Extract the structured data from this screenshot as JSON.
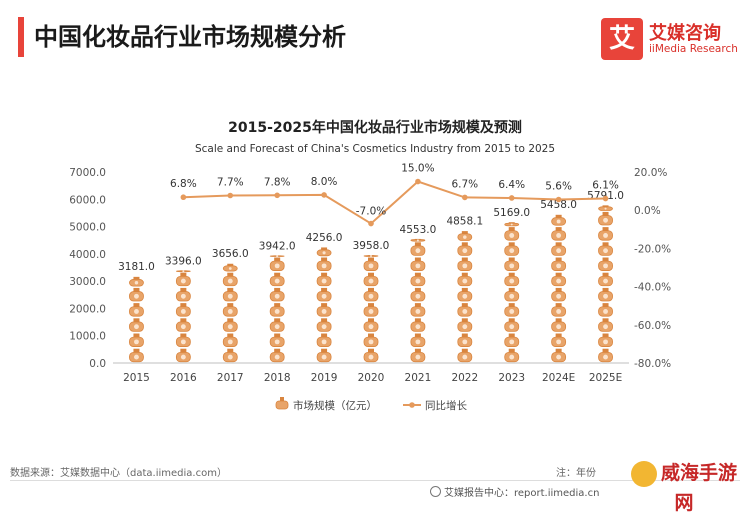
{
  "header": {
    "title": "中国化妆品行业市场规模分析",
    "accent": "#e8443a"
  },
  "logo": {
    "mark": "艾",
    "name_cn": "艾媒咨询",
    "name_en": "iiMedia Research"
  },
  "chart_data": {
    "type": "bar",
    "title": "2015-2025年中国化妆品行业市场规模及预测",
    "subtitle": "Scale and Forecast of China's Cosmetics Industry from 2015 to 2025",
    "categories": [
      "2015",
      "2016",
      "2017",
      "2018",
      "2019",
      "2020",
      "2021",
      "2022",
      "2023",
      "2024E",
      "2025E"
    ],
    "series": [
      {
        "name": "市场规模（亿元）",
        "type": "bar",
        "axis": "left",
        "values": [
          3181.0,
          3396.0,
          3656.0,
          3942.0,
          4256.0,
          3958.0,
          4553.0,
          4858.1,
          5169.0,
          5458.0,
          5791.0
        ],
        "labels": [
          "3181.0",
          "3396.0",
          "3656.0",
          "3942.0",
          "4256.0",
          "3958.0",
          "4553.0",
          "4858.1",
          "5169.0",
          "5458.0",
          "5791.0"
        ]
      },
      {
        "name": "同比增长",
        "type": "line",
        "axis": "right",
        "values": [
          null,
          6.8,
          7.7,
          7.8,
          8.0,
          -7.0,
          15.0,
          6.7,
          6.4,
          5.6,
          6.1
        ],
        "labels": [
          "",
          "6.8%",
          "7.7%",
          "7.8%",
          "8.0%",
          "-7.0%",
          "15.0%",
          "6.7%",
          "6.4%",
          "5.6%",
          "6.1%"
        ]
      }
    ],
    "y_left": {
      "ylim": [
        0,
        7000
      ],
      "ticks": [
        "0.0",
        "1000.0",
        "2000.0",
        "3000.0",
        "4000.0",
        "5000.0",
        "6000.0",
        "7000.0"
      ]
    },
    "y_right": {
      "ylim": [
        -80,
        20
      ],
      "ticks": [
        "-80.0%",
        "-60.0%",
        "-40.0%",
        "-20.0%",
        "0.0%",
        "20.0%"
      ]
    },
    "legend_position": "bottom-center",
    "colors": {
      "bar": "#e8a469",
      "bar_dark": "#d9853f",
      "line": "#e59a5c"
    }
  },
  "footer": {
    "source": "数据来源：艾媒数据中心（data.iimedia.com）",
    "note": "注：年份",
    "report": "艾媒报告中心：report.iimedia.cn"
  },
  "watermark": {
    "text": "威海手游网"
  }
}
